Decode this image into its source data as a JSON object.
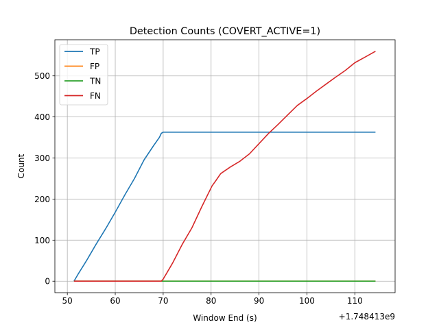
{
  "chart_data": {
    "type": "line",
    "title": "Detection Counts (COVERT_ACTIVE=1)",
    "xlabel": "Window End (s)",
    "ylabel": "Count",
    "x_offset_label": "+1.748413e9",
    "xlim": [
      47.4,
      118.4
    ],
    "ylim": [
      -28,
      588
    ],
    "xticks": [
      50,
      60,
      70,
      80,
      90,
      100,
      110
    ],
    "yticks": [
      0,
      100,
      200,
      300,
      400,
      500
    ],
    "grid": true,
    "legend_position": "top-left",
    "series": [
      {
        "name": "TP",
        "color": "#1f77b4",
        "x": [
          51.4,
          51.8,
          52.3,
          54,
          56,
          58,
          60,
          62,
          64,
          66,
          68,
          69.2,
          69.6,
          70,
          75,
          80.2,
          85,
          95,
          105,
          114.3
        ],
        "y": [
          0,
          8,
          18,
          50,
          90,
          128,
          168,
          210,
          250,
          295,
          330,
          350,
          360,
          363,
          363,
          363,
          363,
          363,
          363,
          363
        ]
      },
      {
        "name": "FP",
        "color": "#ff7f0e",
        "x": [
          51.4,
          114.3
        ],
        "y": [
          0,
          0
        ]
      },
      {
        "name": "TN",
        "color": "#2ca02c",
        "x": [
          51.4,
          114.3
        ],
        "y": [
          0,
          0
        ]
      },
      {
        "name": "FN",
        "color": "#d62728",
        "x": [
          51.4,
          69.6,
          70,
          71,
          72,
          74,
          76,
          78,
          80.2,
          81,
          82,
          84,
          86,
          88,
          90,
          92,
          94,
          96,
          98,
          100,
          102,
          104,
          106,
          108,
          110,
          112,
          114.3
        ],
        "y": [
          0,
          0,
          5,
          25,
          45,
          90,
          130,
          180,
          232,
          245,
          262,
          278,
          292,
          310,
          335,
          360,
          382,
          405,
          428,
          445,
          463,
          480,
          497,
          513,
          532,
          545,
          560
        ]
      }
    ]
  }
}
